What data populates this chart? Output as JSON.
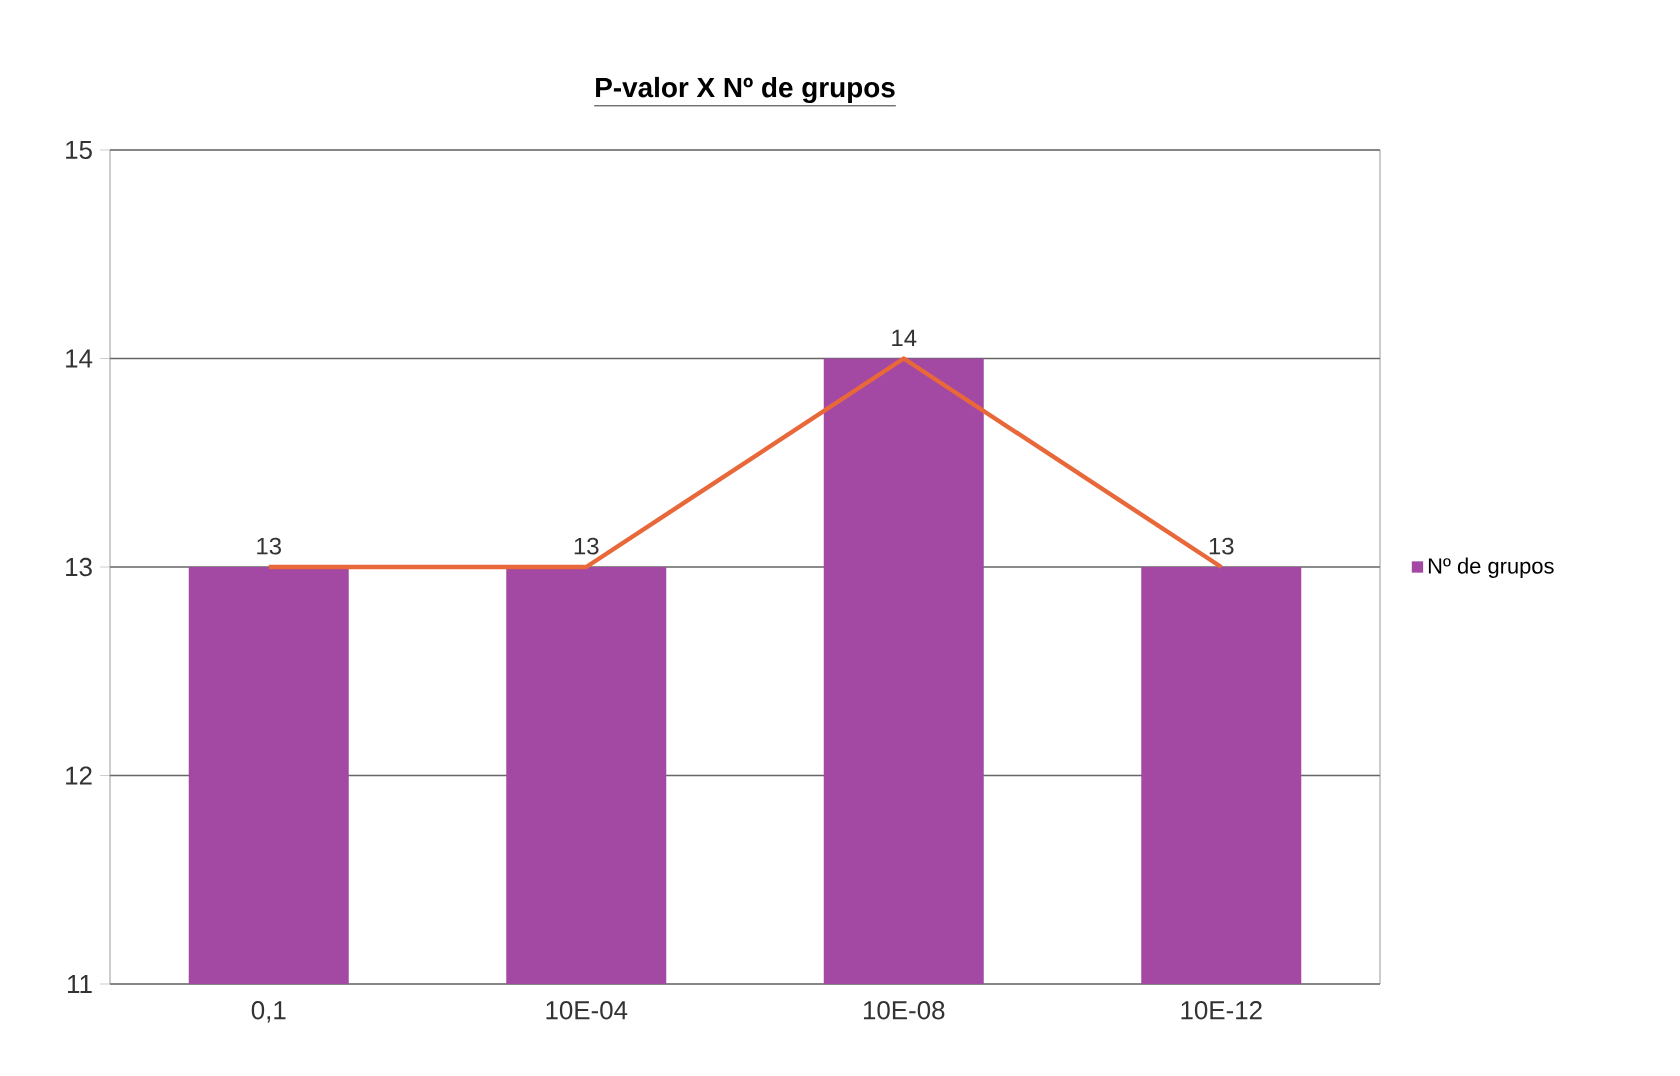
{
  "chart_data": {
    "type": "bar",
    "title": "P-valor X Nº de grupos",
    "categories": [
      "0,1",
      "10E-04",
      "10E-08",
      "10E-12"
    ],
    "series": [
      {
        "name": "Nº de grupos",
        "color": "#a349a4",
        "values": [
          13,
          13,
          14,
          13
        ]
      },
      {
        "type": "line",
        "color": "#e8683a",
        "values": [
          13,
          13,
          14,
          13
        ],
        "value_labels": [
          "13",
          "13",
          "14",
          "13"
        ]
      }
    ],
    "ylim": [
      11,
      15
    ],
    "yticks": [
      11,
      12,
      13,
      14,
      15
    ],
    "grid": "y",
    "legend": "right"
  }
}
